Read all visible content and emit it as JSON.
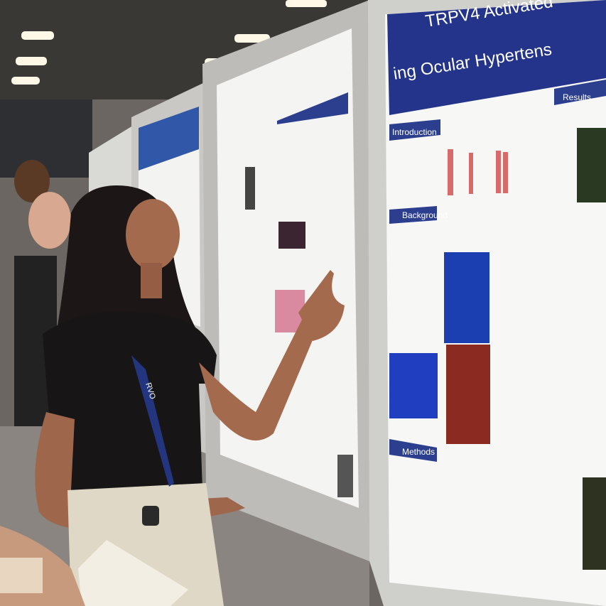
{
  "poster": {
    "title_line1": "TRPV4 Activated",
    "title_line2": "ing Ocular Hypertens",
    "sections": [
      "Introduction",
      "Background",
      "Methods",
      "Results"
    ]
  },
  "lanyard": {
    "text": "RVO"
  }
}
